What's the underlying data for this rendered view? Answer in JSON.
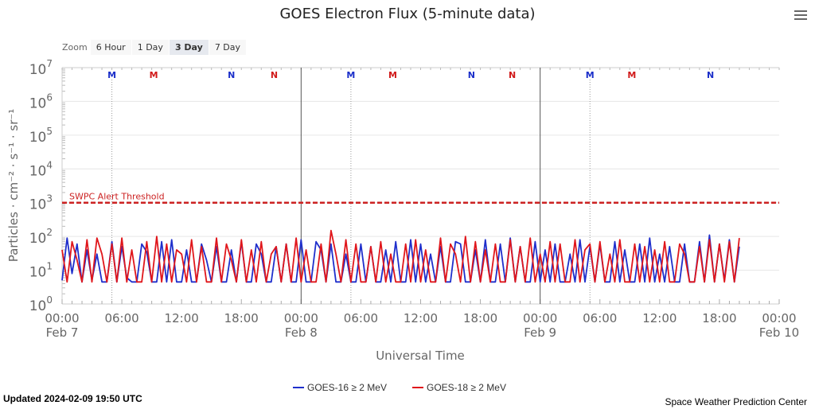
{
  "menu_icon": "hamburger-icon",
  "zoom": {
    "label": "Zoom",
    "buttons": [
      "6 Hour",
      "1 Day",
      "3 Day",
      "7 Day"
    ],
    "active": "3 Day"
  },
  "footer": {
    "updated": "Updated 2024-02-09 19:50 UTC",
    "credit": "Space Weather Prediction Center"
  },
  "chart_data": {
    "type": "line",
    "title": "GOES Electron Flux (5-minute data)",
    "xlabel": "Universal Time",
    "ylabel": "Particles · cm⁻² · s⁻¹ · sr⁻¹",
    "y_scale": "log",
    "ylim": [
      1,
      10000000
    ],
    "xlim_hours": [
      0,
      72
    ],
    "y_ticks": [
      {
        "base": "10",
        "exp": "0"
      },
      {
        "base": "10",
        "exp": "1"
      },
      {
        "base": "10",
        "exp": "2"
      },
      {
        "base": "10",
        "exp": "3"
      },
      {
        "base": "10",
        "exp": "4"
      },
      {
        "base": "10",
        "exp": "5"
      },
      {
        "base": "10",
        "exp": "6"
      },
      {
        "base": "10",
        "exp": "7"
      }
    ],
    "x_ticks": [
      {
        "h": 0,
        "label": "00:00",
        "date": "Feb 7"
      },
      {
        "h": 6,
        "label": "06:00"
      },
      {
        "h": 12,
        "label": "12:00"
      },
      {
        "h": 18,
        "label": "18:00"
      },
      {
        "h": 24,
        "label": "00:00",
        "date": "Feb 8"
      },
      {
        "h": 30,
        "label": "06:00"
      },
      {
        "h": 36,
        "label": "12:00"
      },
      {
        "h": 42,
        "label": "18:00"
      },
      {
        "h": 48,
        "label": "00:00",
        "date": "Feb 9"
      },
      {
        "h": 54,
        "label": "06:00"
      },
      {
        "h": 60,
        "label": "12:00"
      },
      {
        "h": 66,
        "label": "18:00"
      },
      {
        "h": 72,
        "label": "00:00",
        "date": "Feb 10"
      }
    ],
    "threshold": {
      "value": 1000,
      "label": "SWPC Alert Threshold",
      "color": "#cc2222"
    },
    "markers": [
      {
        "h": 5.0,
        "label": "M",
        "color": "#1a2ec9"
      },
      {
        "h": 9.2,
        "label": "M",
        "color": "#d11a1a"
      },
      {
        "h": 17.0,
        "label": "N",
        "color": "#1a2ec9"
      },
      {
        "h": 21.3,
        "label": "N",
        "color": "#d11a1a"
      },
      {
        "h": 29.0,
        "label": "M",
        "color": "#1a2ec9"
      },
      {
        "h": 33.2,
        "label": "M",
        "color": "#d11a1a"
      },
      {
        "h": 41.1,
        "label": "N",
        "color": "#1a2ec9"
      },
      {
        "h": 45.2,
        "label": "N",
        "color": "#d11a1a"
      },
      {
        "h": 53.0,
        "label": "M",
        "color": "#1a2ec9"
      },
      {
        "h": 57.2,
        "label": "M",
        "color": "#d11a1a"
      },
      {
        "h": 65.1,
        "label": "N",
        "color": "#1a2ec9"
      }
    ],
    "x_step_hours": 0.5,
    "series": [
      {
        "name": "GOES-16 ≥ 2 MeV",
        "color": "#1f2fcc",
        "values": [
          5,
          90,
          8,
          60,
          4.5,
          40,
          5,
          30,
          4.5,
          4.5,
          70,
          4.5,
          50,
          6,
          4.5,
          4.5,
          60,
          35,
          4.5,
          4.5,
          70,
          4.5,
          80,
          4.5,
          4.5,
          40,
          4.5,
          4.5,
          60,
          20,
          4.5,
          50,
          4.5,
          4.5,
          40,
          4.5,
          70,
          4.5,
          4.5,
          60,
          30,
          4.5,
          4.5,
          50,
          4.5,
          60,
          4.5,
          4.5,
          80,
          4.5,
          4.5,
          70,
          40,
          4.5,
          60,
          4.5,
          4.5,
          30,
          4.5,
          4.5,
          60,
          4.5,
          50,
          4.5,
          4.5,
          40,
          4.5,
          70,
          4.5,
          4.5,
          80,
          4.5,
          60,
          4.5,
          30,
          4.5,
          50,
          4.5,
          4.5,
          70,
          60,
          4.5,
          4.5,
          40,
          4.5,
          80,
          4.5,
          4.5,
          60,
          4.5,
          90,
          4.5,
          50,
          4.5,
          4.5,
          70,
          4.5,
          40,
          4.5,
          60,
          4.5,
          4.5,
          30,
          4.5,
          80,
          4.5,
          50,
          4.5,
          60,
          4.5,
          4.5,
          70,
          4.5,
          40,
          4.5,
          4.5,
          60,
          4.5,
          90,
          4.5,
          30,
          4.5,
          50,
          4.5,
          4.5,
          60,
          4.5,
          4.5,
          70,
          4.5,
          110,
          4.5,
          60,
          5,
          80,
          4.5,
          50
        ]
      },
      {
        "name": "GOES-18 ≥ 2 MeV",
        "color": "#e0161b",
        "values": [
          40,
          4.5,
          70,
          20,
          4.5,
          80,
          4.5,
          90,
          30,
          4.5,
          60,
          4.5,
          90,
          4.5,
          40,
          4.5,
          4.5,
          70,
          4.5,
          100,
          4.5,
          60,
          4.5,
          40,
          30,
          4.5,
          80,
          4.5,
          50,
          4.5,
          4.5,
          90,
          4.5,
          60,
          20,
          4.5,
          80,
          4.5,
          40,
          4.5,
          70,
          4.5,
          30,
          50,
          4.5,
          60,
          4.5,
          90,
          4.5,
          40,
          4.5,
          4.5,
          60,
          4.5,
          150,
          30,
          4.5,
          80,
          4.5,
          60,
          4.5,
          4.5,
          50,
          4.5,
          70,
          4.5,
          30,
          4.5,
          4.5,
          60,
          4.5,
          80,
          4.5,
          40,
          4.5,
          4.5,
          90,
          4.5,
          60,
          30,
          4.5,
          100,
          4.5,
          70,
          4.5,
          40,
          4.5,
          60,
          4.5,
          4.5,
          80,
          4.5,
          50,
          4.5,
          90,
          4.5,
          30,
          4.5,
          70,
          4.5,
          60,
          4.5,
          4.5,
          80,
          4.5,
          40,
          60,
          4.5,
          70,
          4.5,
          30,
          4.5,
          80,
          4.5,
          4.5,
          60,
          4.5,
          50,
          4.5,
          40,
          4.5,
          70,
          4.5,
          4.5,
          60,
          30,
          4.5,
          4.5,
          50,
          4.5,
          80,
          4.5,
          60,
          4.5,
          70,
          4.5,
          90
        ]
      }
    ]
  }
}
